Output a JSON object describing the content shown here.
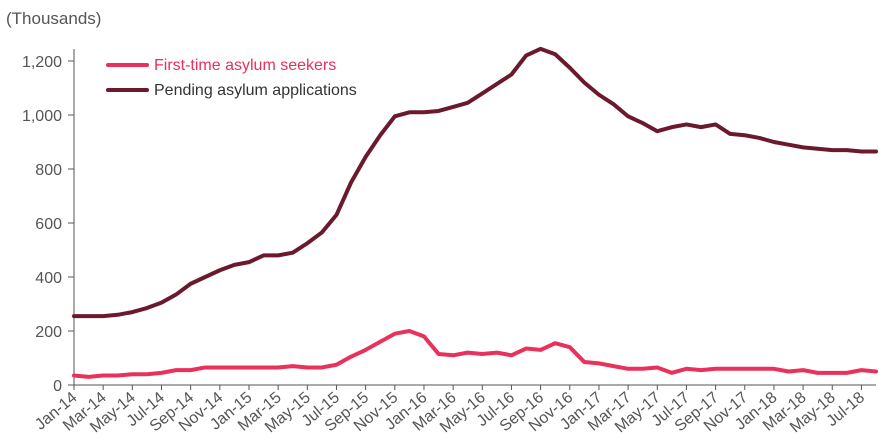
{
  "chart_data": {
    "type": "line",
    "y_unit_label": "(Thousands)",
    "ylim": [
      0,
      1200
    ],
    "y_ticks": [
      0,
      200,
      400,
      600,
      800,
      1000,
      1200
    ],
    "y_tick_labels": [
      "0",
      "200",
      "400",
      "600",
      "800",
      "1,000",
      "1,200"
    ],
    "grid": false,
    "legend_position": "top-left",
    "x": [
      "Jan-14",
      "Feb-14",
      "Mar-14",
      "Apr-14",
      "May-14",
      "Jun-14",
      "Jul-14",
      "Aug-14",
      "Sep-14",
      "Oct-14",
      "Nov-14",
      "Dec-14",
      "Jan-15",
      "Feb-15",
      "Mar-15",
      "Apr-15",
      "May-15",
      "Jun-15",
      "Jul-15",
      "Aug-15",
      "Sep-15",
      "Oct-15",
      "Nov-15",
      "Dec-15",
      "Jan-16",
      "Feb-16",
      "Mar-16",
      "Apr-16",
      "May-16",
      "Jun-16",
      "Jul-16",
      "Aug-16",
      "Sep-16",
      "Oct-16",
      "Nov-16",
      "Dec-16",
      "Jan-17",
      "Feb-17",
      "Mar-17",
      "Apr-17",
      "May-17",
      "Jun-17",
      "Jul-17",
      "Aug-17",
      "Sep-17",
      "Oct-17",
      "Nov-17",
      "Dec-17",
      "Jan-18",
      "Feb-18",
      "Mar-18",
      "Apr-18",
      "May-18",
      "Jun-18",
      "Jul-18",
      "Aug-18"
    ],
    "x_tick_labels": [
      "Jan-14",
      "Mar-14",
      "May-14",
      "Jul-14",
      "Sep-14",
      "Nov-14",
      "Jan-15",
      "Mar-15",
      "May-15",
      "Jul-15",
      "Sep-15",
      "Nov-15",
      "Jan-16",
      "Mar-16",
      "May-16",
      "Jul-16",
      "Sep-16",
      "Nov-16",
      "Jan-17",
      "Mar-17",
      "May-17",
      "Jul-17",
      "Sep-17",
      "Nov-17",
      "Jan-18",
      "Mar-18",
      "May-18",
      "Jul-18"
    ],
    "series": [
      {
        "name": "First-time asylum seekers",
        "color": "#e8315b",
        "values": [
          35,
          30,
          35,
          35,
          40,
          40,
          45,
          55,
          55,
          65,
          65,
          65,
          65,
          65,
          65,
          70,
          65,
          65,
          75,
          105,
          130,
          160,
          190,
          200,
          180,
          115,
          110,
          120,
          115,
          120,
          110,
          135,
          130,
          155,
          140,
          85,
          80,
          70,
          60,
          60,
          65,
          45,
          60,
          55,
          60,
          60,
          60,
          60,
          60,
          50,
          55,
          45,
          45,
          45,
          55,
          50
        ]
      },
      {
        "name": "Pending asylum applications",
        "color": "#6b1a2e",
        "values": [
          255,
          255,
          255,
          260,
          270,
          285,
          305,
          335,
          375,
          400,
          425,
          445,
          455,
          480,
          480,
          490,
          525,
          565,
          630,
          750,
          845,
          925,
          995,
          1010,
          1010,
          1015,
          1030,
          1045,
          1080,
          1115,
          1150,
          1220,
          1245,
          1225,
          1175,
          1120,
          1075,
          1040,
          995,
          970,
          940,
          955,
          965,
          955,
          965,
          930,
          925,
          915,
          900,
          890,
          880,
          875,
          870,
          870,
          865,
          865
        ]
      }
    ]
  }
}
